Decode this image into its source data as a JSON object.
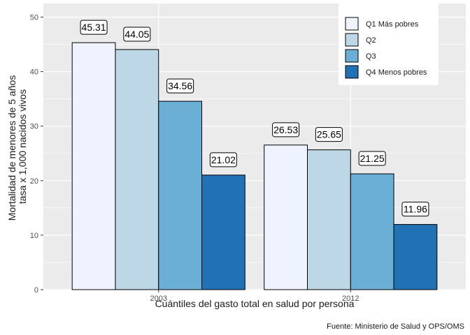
{
  "chart_data": {
    "type": "bar",
    "categories": [
      "2003",
      "2012"
    ],
    "series": [
      {
        "name": "Q1 Más pobres",
        "values": [
          45.31,
          26.53
        ],
        "color": "#eff3ff"
      },
      {
        "name": "Q2",
        "values": [
          44.05,
          25.65
        ],
        "color": "#bdd7e7"
      },
      {
        "name": "Q3",
        "values": [
          34.56,
          21.25
        ],
        "color": "#6baed6"
      },
      {
        "name": "Q4 Menos pobres",
        "values": [
          21.02,
          11.96
        ],
        "color": "#2171b5"
      }
    ],
    "data_labels": [
      [
        "45.31",
        "26.53"
      ],
      [
        "44.05",
        "25.65"
      ],
      [
        "34.56",
        "21.25"
      ],
      [
        "21.02",
        "11.96"
      ]
    ],
    "xlabel": "Cuántiles del gasto total en salud por persona",
    "ylabel_lines": [
      "Mortalidad de menores de 5 años",
      "tasa x 1,000 nacidos vivos"
    ],
    "ylim": [
      0,
      52.5
    ],
    "yticks": [
      0,
      10,
      20,
      30,
      40,
      50
    ],
    "grid": true,
    "legend_position": "top-right",
    "caption": "Fuente: Ministerio de Salud y OPS/OMS",
    "background_color": "#ebebeb",
    "grid_color": "#ffffff"
  }
}
